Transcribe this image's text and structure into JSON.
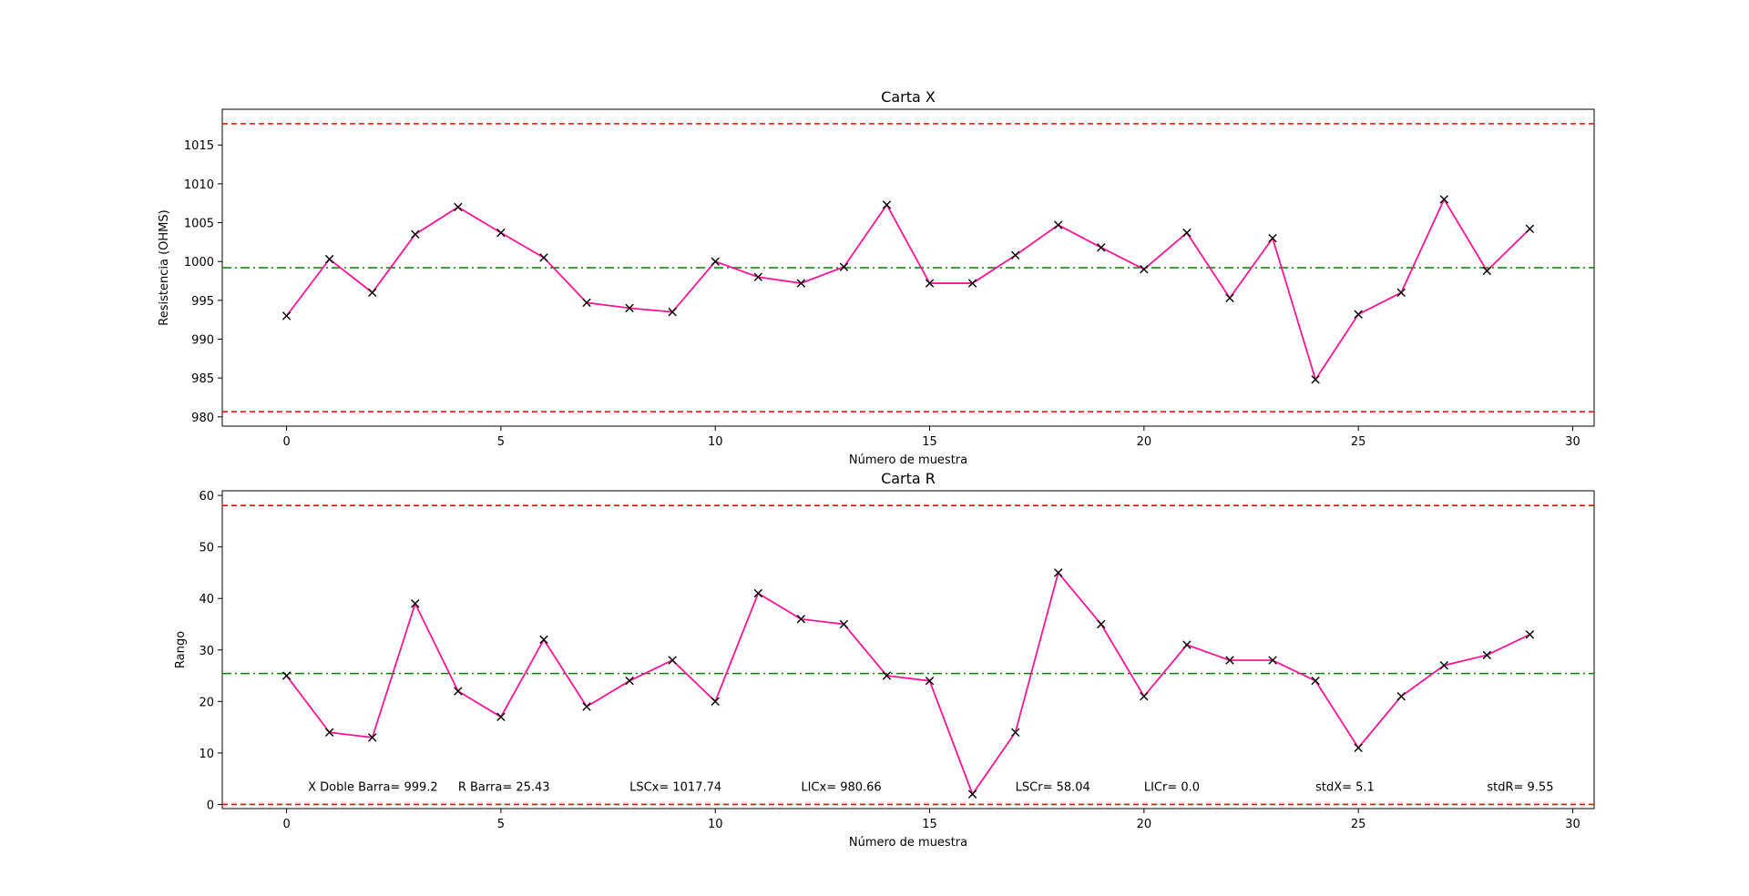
{
  "chart_data": [
    {
      "type": "line",
      "title": "Carta X",
      "xlabel": "Número de muestra",
      "ylabel": "Resistencia (OHMS)",
      "xlim": [
        -1.5,
        30.5
      ],
      "ylim": [
        978.8,
        1019.6
      ],
      "xticks": [
        0,
        5,
        10,
        15,
        20,
        25,
        30
      ],
      "yticks": [
        980,
        985,
        990,
        995,
        1000,
        1005,
        1010,
        1015
      ],
      "grid": false,
      "x": [
        0,
        1,
        2,
        3,
        4,
        5,
        6,
        7,
        8,
        9,
        10,
        11,
        12,
        13,
        14,
        15,
        16,
        17,
        18,
        19,
        20,
        21,
        22,
        23,
        24,
        25,
        26,
        27,
        28,
        29
      ],
      "values": [
        993,
        1000.3,
        996,
        1003.5,
        1007,
        1003.7,
        1000.5,
        994.7,
        994,
        993.5,
        1000,
        998,
        997.2,
        999.3,
        1007.3,
        997.2,
        997.2,
        1000.8,
        1004.7,
        1001.8,
        999,
        1003.7,
        995.3,
        1003,
        984.8,
        993.2,
        996,
        1008,
        998.8,
        1004.2
      ],
      "upper_limit": 1017.74,
      "center_line": 999.2,
      "lower_limit": 980.66,
      "colors": {
        "line": "#ff1493",
        "marker": "#000000",
        "limits": "#ff0000",
        "center": "#008000"
      }
    },
    {
      "type": "line",
      "title": "Carta R",
      "xlabel": "Número de muestra",
      "ylabel": "Rango",
      "xlim": [
        -1.5,
        30.5
      ],
      "ylim": [
        -0.8,
        60.9
      ],
      "xticks": [
        0,
        5,
        10,
        15,
        20,
        25,
        30
      ],
      "yticks": [
        0,
        10,
        20,
        30,
        40,
        50,
        60
      ],
      "grid": false,
      "x": [
        0,
        1,
        2,
        3,
        4,
        5,
        6,
        7,
        8,
        9,
        10,
        11,
        12,
        13,
        14,
        15,
        16,
        17,
        18,
        19,
        20,
        21,
        22,
        23,
        24,
        25,
        26,
        27,
        28,
        29
      ],
      "values": [
        25,
        14,
        13,
        39,
        22,
        17,
        32,
        19,
        24,
        28,
        20,
        41,
        36,
        35,
        25,
        24,
        2,
        14,
        45,
        35,
        21,
        31,
        28,
        28,
        24,
        11,
        21,
        27,
        29,
        33
      ],
      "upper_limit": 58.04,
      "center_line": 25.43,
      "lower_limit": 0.0,
      "annotations": [
        {
          "x": 0.5,
          "y": 3.5,
          "text": "X Doble Barra= 999.2"
        },
        {
          "x": 4.0,
          "y": 3.5,
          "text": "R Barra= 25.43"
        },
        {
          "x": 8.0,
          "y": 3.5,
          "text": "LSCx= 1017.74"
        },
        {
          "x": 12.0,
          "y": 3.5,
          "text": "LICx= 980.66"
        },
        {
          "x": 17.0,
          "y": 3.5,
          "text": "LSCr= 58.04"
        },
        {
          "x": 20.0,
          "y": 3.5,
          "text": "LICr= 0.0"
        },
        {
          "x": 24.0,
          "y": 3.5,
          "text": "stdX= 5.1"
        },
        {
          "x": 28.0,
          "y": 3.5,
          "text": "stdR= 9.55"
        }
      ],
      "colors": {
        "line": "#ff1493",
        "marker": "#000000",
        "limits": "#ff0000",
        "center": "#008000"
      }
    }
  ]
}
